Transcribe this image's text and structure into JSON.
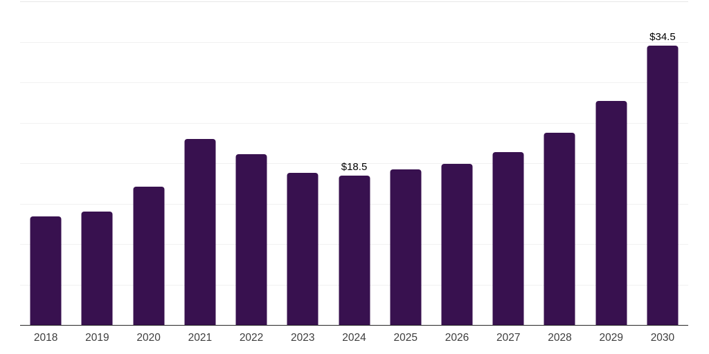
{
  "chart_data": {
    "type": "bar",
    "title": "",
    "xlabel": "",
    "ylabel": "",
    "categories": [
      "2018",
      "2019",
      "2020",
      "2021",
      "2022",
      "2023",
      "2024",
      "2025",
      "2026",
      "2027",
      "2028",
      "2029",
      "2030"
    ],
    "values": [
      13.4,
      14.0,
      17.1,
      23.0,
      21.1,
      18.8,
      18.5,
      19.2,
      19.9,
      21.4,
      23.8,
      27.7,
      34.5
    ],
    "data_labels": [
      {
        "index": 6,
        "text": "$18.5"
      },
      {
        "index": 12,
        "text": "$34.5"
      }
    ],
    "ylim": [
      0,
      40
    ],
    "gridline_step": 5,
    "grid": true,
    "legend": "none",
    "y_axis_labels_visible": false,
    "bar_color": "#38114f",
    "gridline_color": "#f1f1f1",
    "axis_line_color": "#262626",
    "tick_label_color": "#3d3d3d",
    "value_label_color": "#000000",
    "background_color": "#ffffff"
  }
}
